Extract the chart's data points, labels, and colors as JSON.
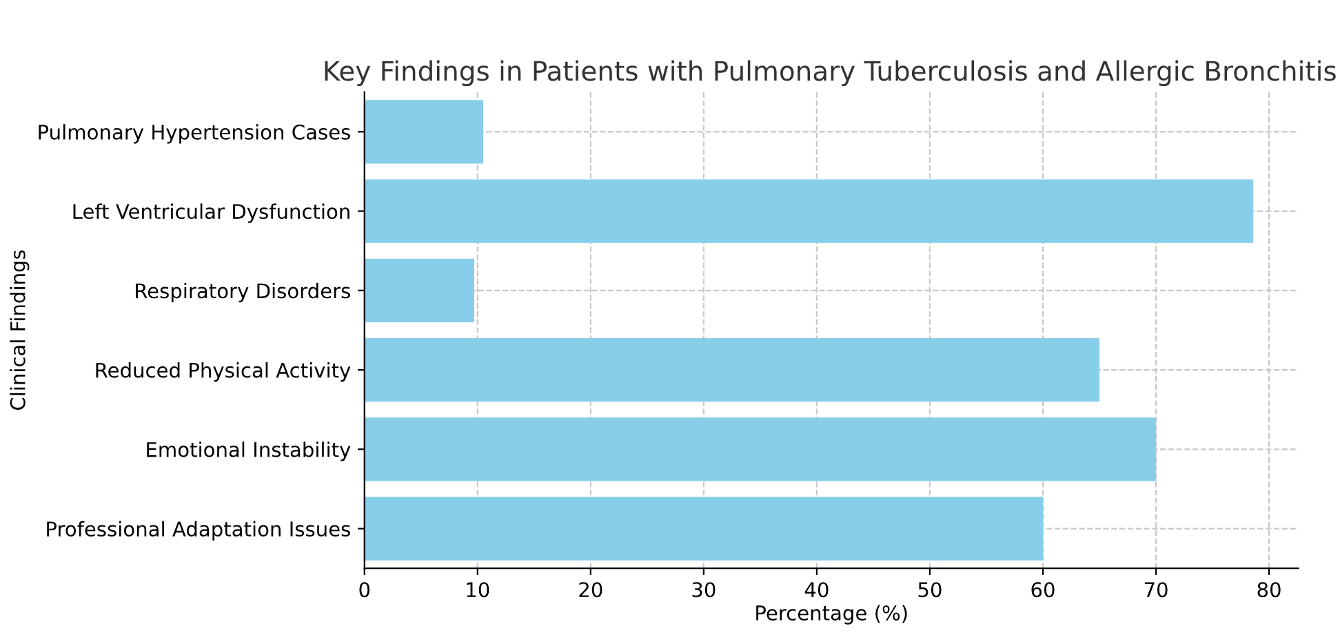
{
  "chart_data": {
    "type": "bar",
    "orientation": "horizontal",
    "title": "Key Findings in Patients with Pulmonary Tuberculosis and Allergic Bronchitis",
    "xlabel": "Percentage (%)",
    "ylabel": "Clinical Findings",
    "categories": [
      "Pulmonary Hypertension Cases",
      "Left Ventricular Dysfunction",
      "Respiratory Disorders",
      "Reduced Physical Activity",
      "Emotional Instability",
      "Professional Adaptation Issues"
    ],
    "values": [
      10.5,
      78.6,
      9.7,
      65,
      70,
      60
    ],
    "color": "#87ceeb",
    "xlim": [
      0,
      82.6
    ],
    "xticks": [
      0,
      10,
      20,
      30,
      40,
      50,
      60,
      70,
      80
    ],
    "grid": true,
    "line_style": "dashed"
  }
}
